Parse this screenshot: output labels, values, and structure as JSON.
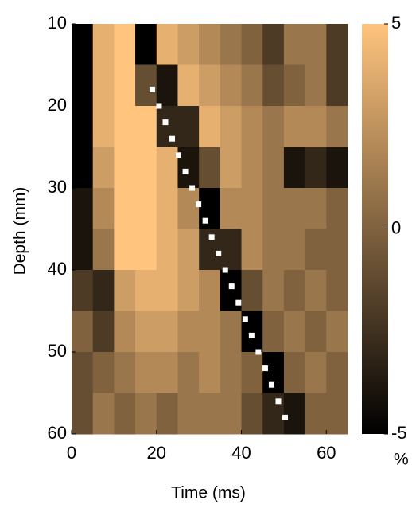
{
  "chart_data": {
    "type": "heatmap",
    "x_label": "Time (ms)",
    "y_label": "Depth (mm)",
    "xlim": [
      0,
      65
    ],
    "ylim": [
      60,
      10
    ],
    "xticks": [
      0,
      20,
      40,
      60
    ],
    "yticks": [
      10,
      20,
      30,
      40,
      50,
      60
    ],
    "xbins": [
      0,
      5,
      10,
      15,
      20,
      25,
      30,
      35,
      40,
      45,
      50,
      55,
      60,
      65
    ],
    "ybins": [
      10,
      15,
      20,
      25,
      30,
      35,
      40,
      45,
      50,
      55,
      60
    ],
    "z": [
      [
        -5,
        4,
        5,
        -5,
        4,
        3,
        2,
        1,
        0,
        -2,
        1,
        1,
        -2
      ],
      [
        -5,
        4,
        5,
        -1,
        -4,
        4,
        3,
        2,
        1,
        -1,
        0,
        1,
        -2
      ],
      [
        -5,
        4,
        5,
        5,
        -3,
        -3,
        4,
        3,
        2,
        1,
        2,
        2,
        1
      ],
      [
        -5,
        3,
        5,
        5,
        4,
        -4,
        -1,
        3,
        2,
        1,
        -4,
        -3,
        -4
      ],
      [
        -4,
        2,
        5,
        5,
        4,
        2,
        -5,
        2,
        2,
        1,
        1,
        1,
        0
      ],
      [
        -4,
        1,
        5,
        5,
        4,
        3,
        -3,
        -3,
        2,
        1,
        1,
        0,
        0
      ],
      [
        -2,
        -3,
        3,
        4,
        4,
        3,
        2,
        -5,
        -1,
        1,
        0,
        1,
        0
      ],
      [
        0,
        -2,
        2,
        3,
        3,
        2,
        2,
        1,
        -5,
        0,
        1,
        0,
        1
      ],
      [
        -1,
        0,
        1,
        2,
        2,
        1,
        2,
        1,
        0,
        -5,
        0,
        1,
        0
      ],
      [
        -1,
        1,
        0,
        1,
        0,
        1,
        1,
        1,
        -1,
        -3,
        -4,
        0,
        0
      ]
    ],
    "zlim": [
      -5,
      5
    ],
    "zticks": [
      -5,
      0,
      5
    ],
    "colormap": [
      "#000000",
      "#ffc47e"
    ],
    "colorbar_label": "%",
    "overlay": {
      "color": "#ffffff",
      "x": [
        19,
        20.6,
        22.1,
        23.7,
        25.2,
        26.8,
        28.4,
        29.9,
        31.5,
        33.0,
        34.6,
        36.2,
        37.7,
        39.3,
        40.9,
        42.4,
        44.0,
        45.6,
        47.1,
        48.7,
        50.3
      ],
      "y": [
        18,
        20,
        22,
        24,
        26,
        28,
        30,
        32,
        34,
        36,
        38,
        40,
        42,
        44,
        46,
        48,
        50,
        52,
        54,
        56,
        58
      ]
    }
  }
}
